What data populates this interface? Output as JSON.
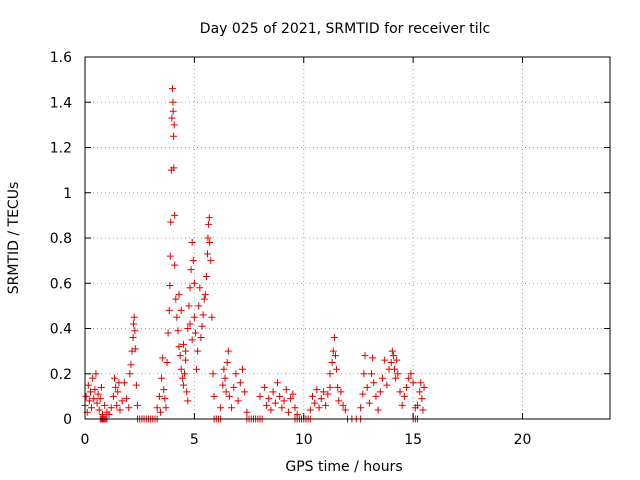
{
  "chart_data": {
    "type": "scatter",
    "title": "Day 025 of 2021, SRMTID for receiver tilc",
    "xlabel": "GPS time / hours",
    "ylabel": "SRMTID / TECUs",
    "xlim": [
      0,
      24
    ],
    "ylim": [
      0,
      1.6
    ],
    "x_ticks": [
      0,
      5,
      10,
      15,
      20
    ],
    "y_ticks": [
      0,
      0.2,
      0.4,
      0.6,
      0.8,
      1,
      1.2,
      1.4,
      1.6
    ],
    "x_tick_labels": [
      "0",
      "5",
      "10",
      "15",
      "20"
    ],
    "y_tick_labels": [
      "0",
      "0.2",
      "0.4",
      "0.6",
      "0.8",
      "1",
      "1.2",
      "1.4",
      "1.6"
    ],
    "grid": true,
    "marker": "+",
    "color": "#e00000",
    "series": [
      {
        "name": "SRMTID",
        "points": [
          [
            0.0,
            0.06
          ],
          [
            0.05,
            0.1
          ],
          [
            0.1,
            0.03
          ],
          [
            0.15,
            0.15
          ],
          [
            0.2,
            0.08
          ],
          [
            0.25,
            0.12
          ],
          [
            0.3,
            0.05
          ],
          [
            0.35,
            0.18
          ],
          [
            0.4,
            0.09
          ],
          [
            0.45,
            0.13
          ],
          [
            0.5,
            0.2
          ],
          [
            0.55,
            0.07
          ],
          [
            0.6,
            0.11
          ],
          [
            0.65,
            0.04
          ],
          [
            0.7,
            0.09
          ],
          [
            0.75,
            0.14
          ],
          [
            0.8,
            0.02
          ],
          [
            0.9,
            0.06
          ],
          [
            0.7,
            0.0
          ],
          [
            0.75,
            0.0
          ],
          [
            0.8,
            0.0
          ],
          [
            0.85,
            0.0
          ],
          [
            0.9,
            0.0
          ],
          [
            0.95,
            0.0
          ],
          [
            1.0,
            0.0
          ],
          [
            1.0,
            0.03
          ],
          [
            1.1,
            0.02
          ],
          [
            1.2,
            0.05
          ],
          [
            1.3,
            0.1
          ],
          [
            1.35,
            0.18
          ],
          [
            1.4,
            0.14
          ],
          [
            1.45,
            0.06
          ],
          [
            1.5,
            0.12
          ],
          [
            1.55,
            0.16
          ],
          [
            1.6,
            0.04
          ],
          [
            1.7,
            0.08
          ],
          [
            1.8,
            0.16
          ],
          [
            1.9,
            0.09
          ],
          [
            2.0,
            0.05
          ],
          [
            2.05,
            0.2
          ],
          [
            2.1,
            0.24
          ],
          [
            2.15,
            0.3
          ],
          [
            2.2,
            0.36
          ],
          [
            2.22,
            0.42
          ],
          [
            2.25,
            0.45
          ],
          [
            2.28,
            0.39
          ],
          [
            2.3,
            0.31
          ],
          [
            2.35,
            0.15
          ],
          [
            2.4,
            0.06
          ],
          [
            2.4,
            0.0
          ],
          [
            2.5,
            0.0
          ],
          [
            2.6,
            0.0
          ],
          [
            2.7,
            0.0
          ],
          [
            2.8,
            0.0
          ],
          [
            2.9,
            0.0
          ],
          [
            3.0,
            0.0
          ],
          [
            3.1,
            0.0
          ],
          [
            3.2,
            0.0
          ],
          [
            3.3,
            0.0
          ],
          [
            3.3,
            0.05
          ],
          [
            3.4,
            0.1
          ],
          [
            3.45,
            0.03
          ],
          [
            3.5,
            0.18
          ],
          [
            3.55,
            0.27
          ],
          [
            3.6,
            0.13
          ],
          [
            3.65,
            0.09
          ],
          [
            3.7,
            0.05
          ],
          [
            3.75,
            0.25
          ],
          [
            3.8,
            0.38
          ],
          [
            3.85,
            0.48
          ],
          [
            3.88,
            0.59
          ],
          [
            3.9,
            0.72
          ],
          [
            3.92,
            0.87
          ],
          [
            3.95,
            1.1
          ],
          [
            3.97,
            1.33
          ],
          [
            4.0,
            1.46
          ],
          [
            4.02,
            1.4
          ],
          [
            4.03,
            1.36
          ],
          [
            4.05,
            1.25
          ],
          [
            4.06,
            1.11
          ],
          [
            4.08,
            1.3
          ],
          [
            4.1,
            0.9
          ],
          [
            4.1,
            0.68
          ],
          [
            4.15,
            0.53
          ],
          [
            4.2,
            0.45
          ],
          [
            4.25,
            0.39
          ],
          [
            4.3,
            0.32
          ],
          [
            4.35,
            0.28
          ],
          [
            4.4,
            0.22
          ],
          [
            4.45,
            0.18
          ],
          [
            4.5,
            0.15
          ],
          [
            4.55,
            0.2
          ],
          [
            4.6,
            0.26
          ],
          [
            4.65,
            0.12
          ],
          [
            4.7,
            0.08
          ],
          [
            4.3,
            0.55
          ],
          [
            4.4,
            0.48
          ],
          [
            4.5,
            0.33
          ],
          [
            4.6,
            0.3
          ],
          [
            4.7,
            0.4
          ],
          [
            4.75,
            0.5
          ],
          [
            4.8,
            0.58
          ],
          [
            4.85,
            0.66
          ],
          [
            4.9,
            0.78
          ],
          [
            4.95,
            0.7
          ],
          [
            5.0,
            0.6
          ],
          [
            4.8,
            0.42
          ],
          [
            4.9,
            0.35
          ],
          [
            5.0,
            0.45
          ],
          [
            5.05,
            0.38
          ],
          [
            5.1,
            0.22
          ],
          [
            5.15,
            0.3
          ],
          [
            5.2,
            0.5
          ],
          [
            5.25,
            0.58
          ],
          [
            5.3,
            0.36
          ],
          [
            5.35,
            0.41
          ],
          [
            5.4,
            0.46
          ],
          [
            5.45,
            0.53
          ],
          [
            5.5,
            0.55
          ],
          [
            5.55,
            0.63
          ],
          [
            5.6,
            0.73
          ],
          [
            5.62,
            0.8
          ],
          [
            5.65,
            0.86
          ],
          [
            5.68,
            0.89
          ],
          [
            5.7,
            0.78
          ],
          [
            5.75,
            0.7
          ],
          [
            5.8,
            0.45
          ],
          [
            5.85,
            0.2
          ],
          [
            5.9,
            0.1
          ],
          [
            5.9,
            0.0
          ],
          [
            6.0,
            0.0
          ],
          [
            6.1,
            0.0
          ],
          [
            6.2,
            0.0
          ],
          [
            6.2,
            0.05
          ],
          [
            6.3,
            0.15
          ],
          [
            6.35,
            0.22
          ],
          [
            6.4,
            0.18
          ],
          [
            6.45,
            0.12
          ],
          [
            6.5,
            0.25
          ],
          [
            6.55,
            0.3
          ],
          [
            6.6,
            0.1
          ],
          [
            6.7,
            0.05
          ],
          [
            6.8,
            0.14
          ],
          [
            6.9,
            0.2
          ],
          [
            7.0,
            0.08
          ],
          [
            7.1,
            0.16
          ],
          [
            7.2,
            0.22
          ],
          [
            7.3,
            0.12
          ],
          [
            7.4,
            0.03
          ],
          [
            7.4,
            0.0
          ],
          [
            7.5,
            0.0
          ],
          [
            7.6,
            0.0
          ],
          [
            7.7,
            0.0
          ],
          [
            7.8,
            0.0
          ],
          [
            7.9,
            0.0
          ],
          [
            8.0,
            0.0
          ],
          [
            8.1,
            0.0
          ],
          [
            8.0,
            0.1
          ],
          [
            8.2,
            0.14
          ],
          [
            8.3,
            0.06
          ],
          [
            8.4,
            0.09
          ],
          [
            8.5,
            0.04
          ],
          [
            8.6,
            0.12
          ],
          [
            8.7,
            0.07
          ],
          [
            8.8,
            0.16
          ],
          [
            8.9,
            0.1
          ],
          [
            9.0,
            0.05
          ],
          [
            9.1,
            0.08
          ],
          [
            9.2,
            0.13
          ],
          [
            9.3,
            0.03
          ],
          [
            9.4,
            0.09
          ],
          [
            9.5,
            0.11
          ],
          [
            9.6,
            0.05
          ],
          [
            9.7,
            0.02
          ],
          [
            9.6,
            0.0
          ],
          [
            9.7,
            0.0
          ],
          [
            9.8,
            0.0
          ],
          [
            9.9,
            0.0
          ],
          [
            10.0,
            0.0
          ],
          [
            10.1,
            0.0
          ],
          [
            10.2,
            0.0
          ],
          [
            10.3,
            0.0
          ],
          [
            10.3,
            0.04
          ],
          [
            10.4,
            0.1
          ],
          [
            10.5,
            0.07
          ],
          [
            10.6,
            0.13
          ],
          [
            10.7,
            0.05
          ],
          [
            10.8,
            0.09
          ],
          [
            10.9,
            0.12
          ],
          [
            11.0,
            0.06
          ],
          [
            11.1,
            0.11
          ],
          [
            11.2,
            0.14
          ],
          [
            11.2,
            0.2
          ],
          [
            11.3,
            0.25
          ],
          [
            11.35,
            0.3
          ],
          [
            11.4,
            0.36
          ],
          [
            11.45,
            0.28
          ],
          [
            11.5,
            0.22
          ],
          [
            11.55,
            0.14
          ],
          [
            11.6,
            0.08
          ],
          [
            11.7,
            0.12
          ],
          [
            11.8,
            0.06
          ],
          [
            11.9,
            0.04
          ],
          [
            12.0,
            0.0
          ],
          [
            12.2,
            0.0
          ],
          [
            12.4,
            0.0
          ],
          [
            12.6,
            0.0
          ],
          [
            12.6,
            0.05
          ],
          [
            12.7,
            0.11
          ],
          [
            12.75,
            0.2
          ],
          [
            12.8,
            0.28
          ],
          [
            12.9,
            0.14
          ],
          [
            13.0,
            0.07
          ],
          [
            13.1,
            0.2
          ],
          [
            13.15,
            0.27
          ],
          [
            13.2,
            0.16
          ],
          [
            13.3,
            0.1
          ],
          [
            13.4,
            0.04
          ],
          [
            13.5,
            0.12
          ],
          [
            13.6,
            0.18
          ],
          [
            13.7,
            0.26
          ],
          [
            13.8,
            0.15
          ],
          [
            13.9,
            0.22
          ],
          [
            14.0,
            0.25
          ],
          [
            14.05,
            0.3
          ],
          [
            14.1,
            0.28
          ],
          [
            14.15,
            0.22
          ],
          [
            14.2,
            0.18
          ],
          [
            14.25,
            0.26
          ],
          [
            14.3,
            0.2
          ],
          [
            14.4,
            0.12
          ],
          [
            14.5,
            0.06
          ],
          [
            14.6,
            0.1
          ],
          [
            14.7,
            0.14
          ],
          [
            14.8,
            0.18
          ],
          [
            14.9,
            0.2
          ],
          [
            15.0,
            0.16
          ],
          [
            15.1,
            0.05
          ],
          [
            15.0,
            0.0
          ],
          [
            15.1,
            0.0
          ],
          [
            15.2,
            0.0
          ],
          [
            15.2,
            0.06
          ],
          [
            15.3,
            0.12
          ],
          [
            15.35,
            0.16
          ],
          [
            15.4,
            0.09
          ],
          [
            15.45,
            0.04
          ],
          [
            15.5,
            0.14
          ]
        ]
      }
    ]
  }
}
